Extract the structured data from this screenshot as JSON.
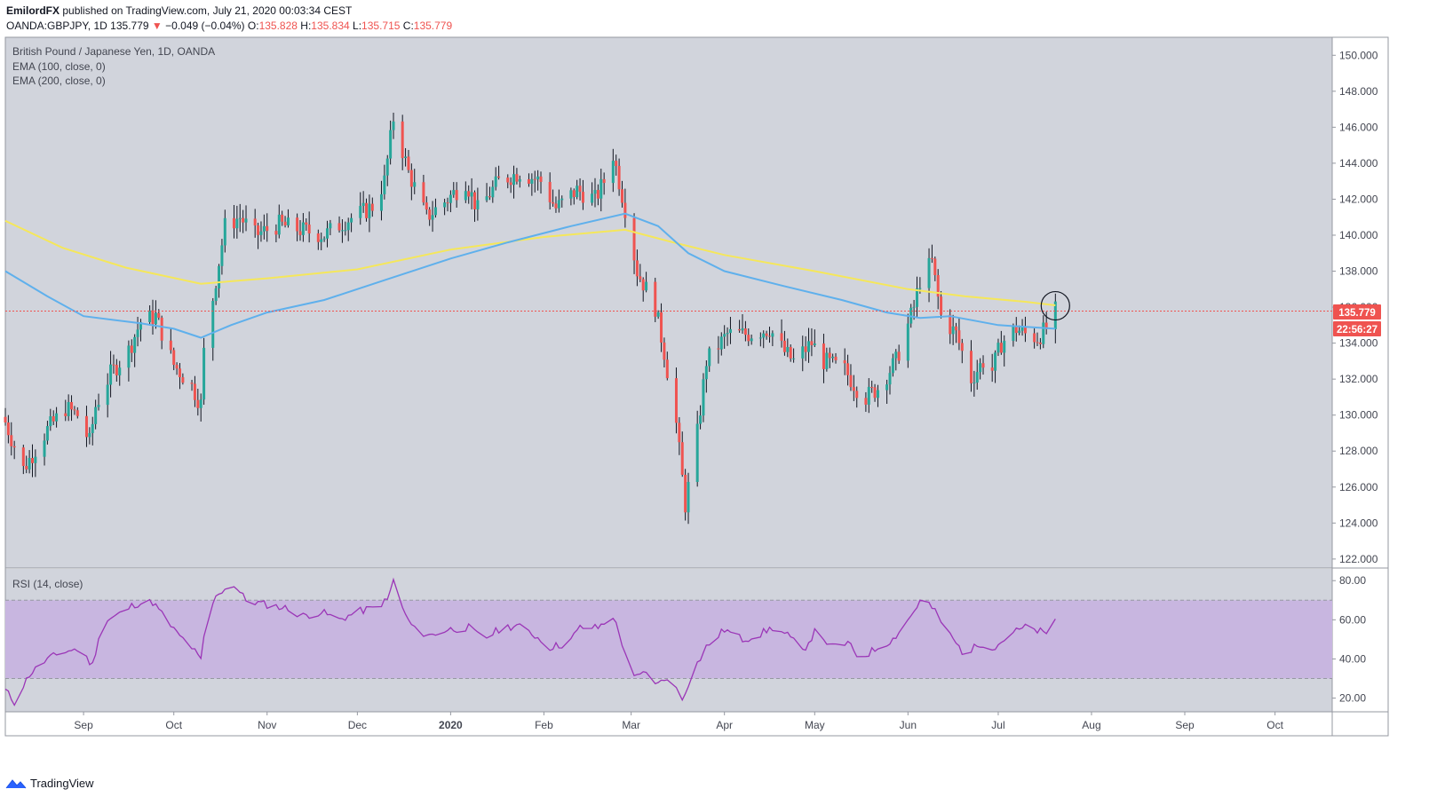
{
  "header": {
    "author": "EmilordFX",
    "published_text": "published on TradingView.com, July 21, 2020 00:03:34 CEST",
    "symbol": "OANDA:GBPJPY, 1D",
    "last_price": "135.779",
    "change_arrow": "▼",
    "change": "−0.049 (−0.04%)",
    "o_label": "O:",
    "o_value": "135.828",
    "h_label": "H:",
    "h_value": "135.834",
    "l_label": "L:",
    "l_value": "135.715",
    "c_label": "C:",
    "c_value": "135.779"
  },
  "legend": {
    "title": "British Pound / Japanese Yen, 1D, OANDA",
    "ema100": "EMA (100, close, 0)",
    "ema200": "EMA (200, close, 0)",
    "rsi": "RSI (14, close)"
  },
  "price_tag": "135.779",
  "countdown_tag": "22:56:27",
  "footer": {
    "brand": "TradingView"
  },
  "colors": {
    "background": "#d1d4dc",
    "up": "#26a69a",
    "down": "#ef5350",
    "wick": "#131722",
    "ema100": "#5fb0ec",
    "ema200": "#f5e75a",
    "rsi_line": "#9b36b7",
    "rsi_band": "#c8b6e0",
    "price_line": "#ef5350"
  },
  "chart_data": [
    {
      "type": "candlestick",
      "title": "British Pound / Japanese Yen, 1D, OANDA",
      "ylim": [
        121.5,
        151
      ],
      "y_ticks": [
        "150.000",
        "148.000",
        "146.000",
        "144.000",
        "142.000",
        "140.000",
        "138.000",
        "136.000",
        "134.000",
        "132.000",
        "130.000",
        "128.000",
        "126.000",
        "124.000",
        "122.000"
      ],
      "x_ticks": [
        "Sep",
        "Oct",
        "Nov",
        "Dec",
        "2020",
        "Feb",
        "Mar",
        "Apr",
        "May",
        "Jun",
        "Jul",
        "Aug",
        "Sep",
        "Oct"
      ],
      "x_tick_dates": [
        "2019-09-01",
        "2019-10-01",
        "2019-11-01",
        "2019-12-01",
        "2020-01-01",
        "2020-02-01",
        "2020-03-01",
        "2020-04-01",
        "2020-05-01",
        "2020-06-01",
        "2020-07-01",
        "2020-08-01",
        "2020-09-01",
        "2020-10-01"
      ],
      "x_range": [
        "2019-08-06",
        "2020-10-20"
      ],
      "close_anchors": [
        [
          "2019-08-06",
          129.6
        ],
        [
          "2019-08-12",
          127.0
        ],
        [
          "2019-08-20",
          129.2
        ],
        [
          "2019-08-26",
          130.4
        ],
        [
          "2019-08-30",
          130.0
        ],
        [
          "2019-09-03",
          128.5
        ],
        [
          "2019-09-05",
          130.5
        ],
        [
          "2019-09-10",
          132.3
        ],
        [
          "2019-09-16",
          133.6
        ],
        [
          "2019-09-20",
          135.2
        ],
        [
          "2019-09-25",
          135.5
        ],
        [
          "2019-10-01",
          132.8
        ],
        [
          "2019-10-07",
          131.6
        ],
        [
          "2019-10-10",
          130.6
        ],
        [
          "2019-10-11",
          133.5
        ],
        [
          "2019-10-15",
          137.5
        ],
        [
          "2019-10-18",
          140.5
        ],
        [
          "2019-10-23",
          141.0
        ],
        [
          "2019-10-28",
          140.0
        ],
        [
          "2019-11-05",
          140.6
        ],
        [
          "2019-11-12",
          140.3
        ],
        [
          "2019-11-20",
          140.0
        ],
        [
          "2019-11-27",
          140.8
        ],
        [
          "2019-12-02",
          141.2
        ],
        [
          "2019-12-06",
          141.6
        ],
        [
          "2019-12-10",
          143.0
        ],
        [
          "2019-12-13",
          146.5
        ],
        [
          "2019-12-18",
          143.5
        ],
        [
          "2019-12-24",
          141.0
        ],
        [
          "2019-12-31",
          142.0
        ],
        [
          "2020-01-06",
          143.0
        ],
        [
          "2020-01-10",
          141.4
        ],
        [
          "2020-01-17",
          143.0
        ],
        [
          "2020-01-24",
          143.5
        ],
        [
          "2020-01-31",
          143.0
        ],
        [
          "2020-02-05",
          141.5
        ],
        [
          "2020-02-12",
          142.5
        ],
        [
          "2020-02-18",
          142.0
        ],
        [
          "2020-02-21",
          143.0
        ],
        [
          "2020-02-24",
          144.5
        ],
        [
          "2020-02-28",
          141.5
        ],
        [
          "2020-03-03",
          138.0
        ],
        [
          "2020-03-09",
          136.0
        ],
        [
          "2020-03-12",
          133.5
        ],
        [
          "2020-03-16",
          129.5
        ],
        [
          "2020-03-19",
          125.0
        ],
        [
          "2020-03-23",
          129.0
        ],
        [
          "2020-03-26",
          133.0
        ],
        [
          "2020-04-02",
          134.5
        ],
        [
          "2020-04-09",
          134.5
        ],
        [
          "2020-04-16",
          134.8
        ],
        [
          "2020-04-21",
          133.5
        ],
        [
          "2020-04-24",
          133.0
        ],
        [
          "2020-04-30",
          134.0
        ],
        [
          "2020-05-04",
          133.0
        ],
        [
          "2020-05-11",
          132.5
        ],
        [
          "2020-05-15",
          131.5
        ],
        [
          "2020-05-18",
          131.0
        ],
        [
          "2020-05-22",
          131.5
        ],
        [
          "2020-05-28",
          133.0
        ],
        [
          "2020-06-03",
          136.0
        ],
        [
          "2020-06-05",
          137.5
        ],
        [
          "2020-06-09",
          138.5
        ],
        [
          "2020-06-12",
          135.5
        ],
        [
          "2020-06-17",
          134.5
        ],
        [
          "2020-06-22",
          132.0
        ],
        [
          "2020-06-26",
          133.0
        ],
        [
          "2020-06-29",
          132.5
        ],
        [
          "2020-07-02",
          134.0
        ],
        [
          "2020-07-07",
          134.8
        ],
        [
          "2020-07-10",
          134.5
        ],
        [
          "2020-07-14",
          134.3
        ],
        [
          "2020-07-17",
          134.8
        ],
        [
          "2020-07-20",
          135.78
        ]
      ],
      "ema100_anchors": [
        [
          "2019-08-06",
          138.0
        ],
        [
          "2019-08-20",
          136.6
        ],
        [
          "2019-09-01",
          135.5
        ],
        [
          "2019-09-20",
          135.1
        ],
        [
          "2019-10-01",
          134.8
        ],
        [
          "2019-10-10",
          134.3
        ],
        [
          "2019-10-20",
          135.0
        ],
        [
          "2019-11-01",
          135.7
        ],
        [
          "2019-11-20",
          136.4
        ],
        [
          "2019-12-10",
          137.5
        ],
        [
          "2020-01-01",
          138.7
        ],
        [
          "2020-01-20",
          139.6
        ],
        [
          "2020-02-10",
          140.5
        ],
        [
          "2020-02-28",
          141.2
        ],
        [
          "2020-03-10",
          140.5
        ],
        [
          "2020-03-20",
          139.0
        ],
        [
          "2020-04-01",
          138.0
        ],
        [
          "2020-04-20",
          137.2
        ],
        [
          "2020-05-10",
          136.4
        ],
        [
          "2020-05-25",
          135.7
        ],
        [
          "2020-06-05",
          135.4
        ],
        [
          "2020-06-15",
          135.5
        ],
        [
          "2020-07-01",
          135.0
        ],
        [
          "2020-07-20",
          134.8
        ]
      ],
      "ema200_anchors": [
        [
          "2019-08-06",
          140.8
        ],
        [
          "2019-08-25",
          139.3
        ],
        [
          "2019-09-15",
          138.2
        ],
        [
          "2019-10-10",
          137.3
        ],
        [
          "2019-11-01",
          137.6
        ],
        [
          "2019-12-01",
          138.1
        ],
        [
          "2020-01-01",
          139.2
        ],
        [
          "2020-02-01",
          139.9
        ],
        [
          "2020-02-28",
          140.3
        ],
        [
          "2020-03-15",
          139.6
        ],
        [
          "2020-04-01",
          138.9
        ],
        [
          "2020-05-01",
          138.0
        ],
        [
          "2020-06-01",
          137.0
        ],
        [
          "2020-06-20",
          136.6
        ],
        [
          "2020-07-10",
          136.3
        ],
        [
          "2020-07-20",
          136.1
        ]
      ],
      "last_value": 135.779
    },
    {
      "type": "line",
      "title": "RSI (14, close)",
      "ylim": [
        13,
        86
      ],
      "y_ticks": [
        "80.00",
        "60.00",
        "40.00",
        "20.00"
      ],
      "band": [
        30,
        70
      ],
      "anchors": [
        [
          "2019-08-06",
          24
        ],
        [
          "2019-08-09",
          18
        ],
        [
          "2019-08-14",
          32
        ],
        [
          "2019-08-20",
          40
        ],
        [
          "2019-08-26",
          44
        ],
        [
          "2019-08-30",
          45
        ],
        [
          "2019-09-04",
          37
        ],
        [
          "2019-09-07",
          58
        ],
        [
          "2019-09-13",
          63
        ],
        [
          "2019-09-18",
          68
        ],
        [
          "2019-09-24",
          69
        ],
        [
          "2019-09-27",
          63
        ],
        [
          "2019-10-02",
          53
        ],
        [
          "2019-10-07",
          46
        ],
        [
          "2019-10-10",
          39
        ],
        [
          "2019-10-12",
          63
        ],
        [
          "2019-10-16",
          74
        ],
        [
          "2019-10-21",
          78
        ],
        [
          "2019-10-25",
          70
        ],
        [
          "2019-10-31",
          68
        ],
        [
          "2019-11-07",
          66
        ],
        [
          "2019-11-13",
          62
        ],
        [
          "2019-11-19",
          64
        ],
        [
          "2019-11-25",
          60
        ],
        [
          "2019-12-01",
          64
        ],
        [
          "2019-12-06",
          66
        ],
        [
          "2019-12-11",
          70
        ],
        [
          "2019-12-13",
          80
        ],
        [
          "2019-12-17",
          62
        ],
        [
          "2019-12-20",
          55
        ],
        [
          "2019-12-25",
          52
        ],
        [
          "2019-12-31",
          55
        ],
        [
          "2020-01-07",
          56
        ],
        [
          "2020-01-12",
          50
        ],
        [
          "2020-01-18",
          56
        ],
        [
          "2020-01-23",
          57
        ],
        [
          "2020-01-29",
          52
        ],
        [
          "2020-02-03",
          46
        ],
        [
          "2020-02-09",
          48
        ],
        [
          "2020-02-13",
          56
        ],
        [
          "2020-02-19",
          56
        ],
        [
          "2020-02-24",
          62
        ],
        [
          "2020-02-27",
          48
        ],
        [
          "2020-03-02",
          30
        ],
        [
          "2020-03-06",
          33
        ],
        [
          "2020-03-10",
          27
        ],
        [
          "2020-03-13",
          31
        ],
        [
          "2020-03-18",
          20
        ],
        [
          "2020-03-22",
          35
        ],
        [
          "2020-03-26",
          46
        ],
        [
          "2020-04-01",
          55
        ],
        [
          "2020-04-07",
          50
        ],
        [
          "2020-04-12",
          52
        ],
        [
          "2020-04-17",
          56
        ],
        [
          "2020-04-22",
          52
        ],
        [
          "2020-04-27",
          44
        ],
        [
          "2020-05-02",
          56
        ],
        [
          "2020-05-06",
          46
        ],
        [
          "2020-05-12",
          48
        ],
        [
          "2020-05-16",
          40
        ],
        [
          "2020-05-21",
          45
        ],
        [
          "2020-05-27",
          50
        ],
        [
          "2020-06-02",
          62
        ],
        [
          "2020-06-06",
          72
        ],
        [
          "2020-06-10",
          64
        ],
        [
          "2020-06-15",
          52
        ],
        [
          "2020-06-20",
          42
        ],
        [
          "2020-06-25",
          48
        ],
        [
          "2020-06-30",
          46
        ],
        [
          "2020-07-05",
          53
        ],
        [
          "2020-07-10",
          56
        ],
        [
          "2020-07-15",
          54
        ],
        [
          "2020-07-17",
          52
        ],
        [
          "2020-07-20",
          61
        ]
      ]
    }
  ]
}
